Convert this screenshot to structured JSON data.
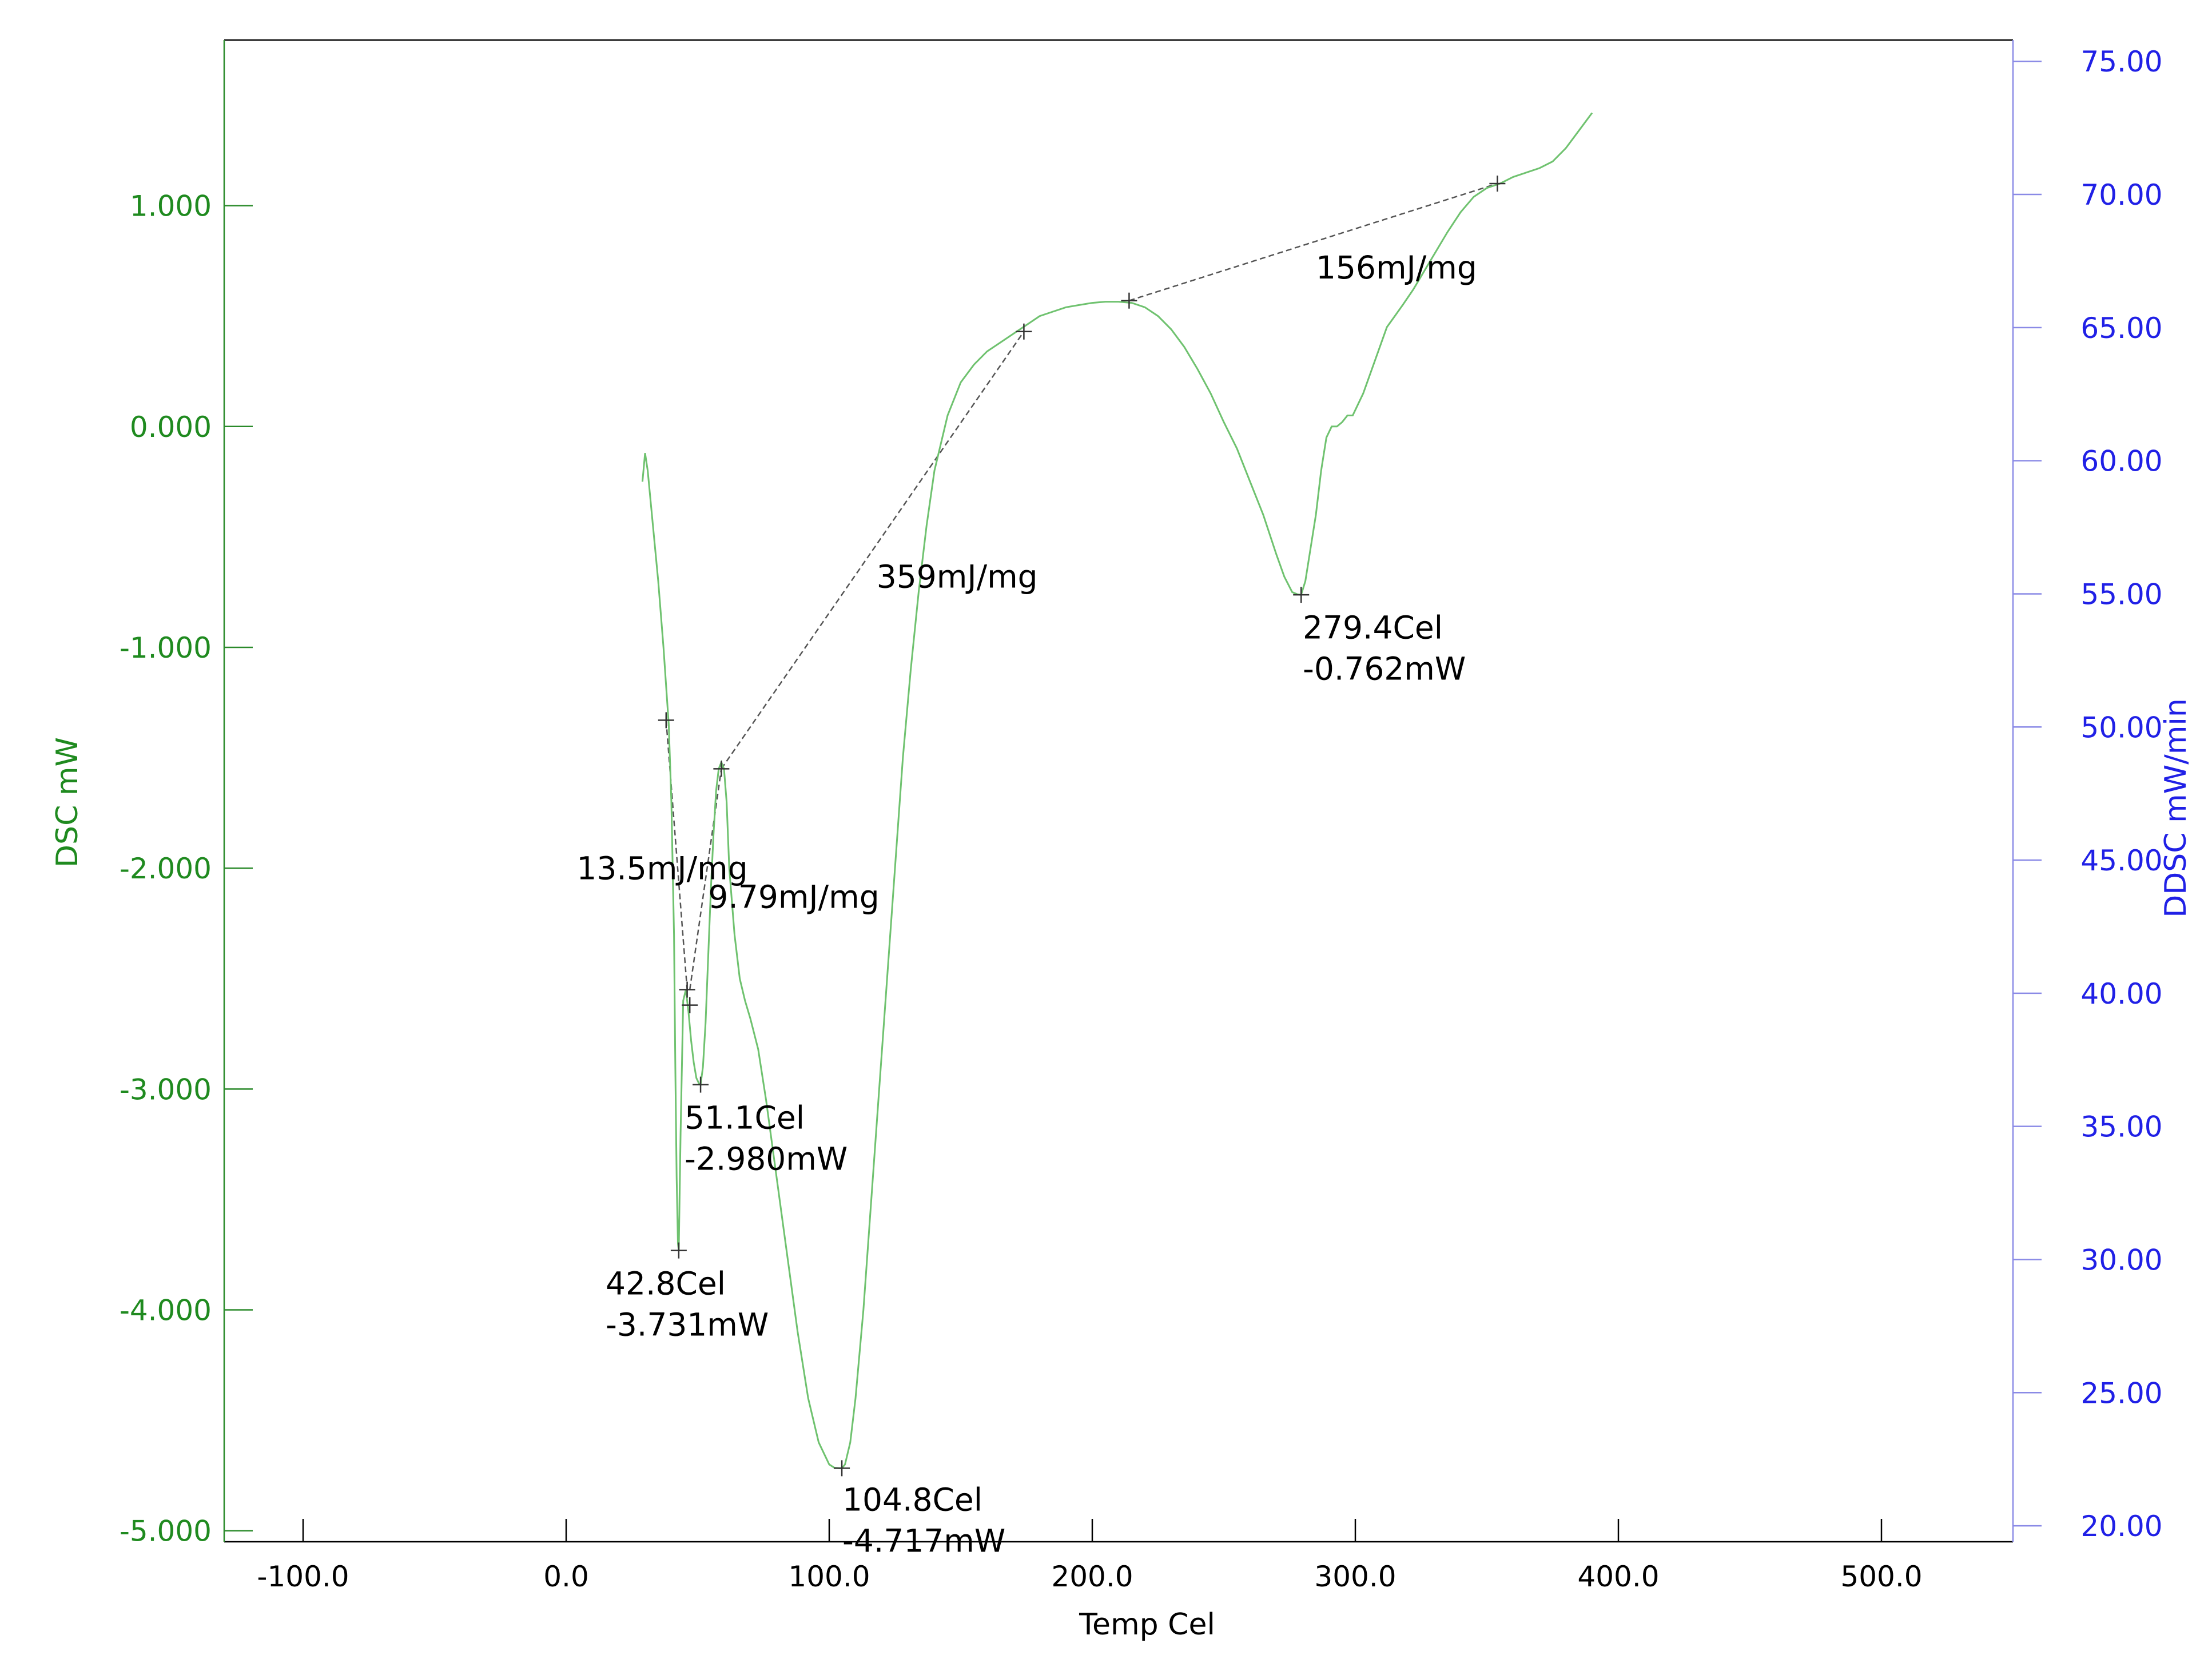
{
  "chart_data": {
    "type": "line",
    "title": "",
    "xlabel": "Temp Cel",
    "ylabel": "DSC mW",
    "y2label": "DDSC mW/min",
    "xlim": [
      -130,
      550
    ],
    "ylim": [
      -5.05,
      1.75
    ],
    "y2lim": [
      19.4,
      75.8
    ],
    "grid": false,
    "legend": "none",
    "colors": {
      "dsc_curve": "#6fc26f",
      "left_axis": "#2a8a2a",
      "left_tick_text": "#1f8a1f",
      "right_axis": "#8a8ae6",
      "right_tick_text": "#2020e6",
      "baseline": "#555555",
      "frame": "#000000"
    },
    "x_ticks": [
      {
        "value": -100,
        "label": "-100.0"
      },
      {
        "value": 0,
        "label": "0.0"
      },
      {
        "value": 100,
        "label": "100.0"
      },
      {
        "value": 200,
        "label": "200.0"
      },
      {
        "value": 300,
        "label": "300.0"
      },
      {
        "value": 400,
        "label": "400.0"
      },
      {
        "value": 500,
        "label": "500.0"
      }
    ],
    "y_ticks": [
      {
        "value": 1,
        "label": "1.000"
      },
      {
        "value": 0,
        "label": "0.000"
      },
      {
        "value": -1,
        "label": "-1.000"
      },
      {
        "value": -2,
        "label": "-2.000"
      },
      {
        "value": -3,
        "label": "-3.000"
      },
      {
        "value": -4,
        "label": "-4.000"
      },
      {
        "value": -5,
        "label": "-5.000"
      }
    ],
    "y2_ticks": [
      {
        "value": 75,
        "label": "75.00"
      },
      {
        "value": 70,
        "label": "70.00"
      },
      {
        "value": 65,
        "label": "65.00"
      },
      {
        "value": 60,
        "label": "60.00"
      },
      {
        "value": 55,
        "label": "55.00"
      },
      {
        "value": 50,
        "label": "50.00"
      },
      {
        "value": 45,
        "label": "45.00"
      },
      {
        "value": 40,
        "label": "40.00"
      },
      {
        "value": 35,
        "label": "35.00"
      },
      {
        "value": 30,
        "label": "30.00"
      },
      {
        "value": 25,
        "label": "25.00"
      },
      {
        "value": 20,
        "label": "20.00"
      }
    ],
    "series": [
      {
        "axis": "left",
        "x": [
          29,
          30,
          31,
          33,
          35,
          37,
          39,
          40,
          41,
          41.5,
          42,
          42.5,
          42.8,
          43.5,
          44.5,
          45.5,
          46.5,
          47.5,
          48.5,
          49.5,
          50.5,
          51.1,
          52,
          53,
          54,
          55,
          56,
          57,
          58,
          59,
          60,
          61,
          62,
          64,
          66,
          68,
          70,
          73,
          76,
          80,
          84,
          88,
          92,
          96,
          100,
          102,
          104,
          104.8,
          106,
          108,
          110,
          113,
          116,
          119,
          122,
          125,
          128,
          131,
          134,
          137,
          140,
          145,
          150,
          155,
          160,
          165,
          170,
          175,
          180,
          185,
          190,
          195,
          200,
          205,
          210,
          215,
          220,
          225,
          230,
          235,
          240,
          245,
          250,
          255,
          260,
          265,
          270,
          273,
          276,
          278,
          279.4,
          281,
          283,
          285,
          287,
          289,
          291,
          293,
          295,
          297,
          299,
          301,
          303,
          306,
          309,
          312,
          315,
          318,
          322,
          326,
          330,
          335,
          340,
          345,
          350,
          355,
          360,
          365,
          370,
          375,
          380,
          385,
          390
        ],
        "y": [
          -0.25,
          -0.12,
          -0.2,
          -0.45,
          -0.7,
          -1.0,
          -1.35,
          -1.7,
          -2.3,
          -2.9,
          -3.4,
          -3.7,
          -3.731,
          -3.2,
          -2.6,
          -2.55,
          -2.65,
          -2.78,
          -2.88,
          -2.95,
          -2.975,
          -2.98,
          -2.9,
          -2.7,
          -2.4,
          -2.1,
          -1.85,
          -1.65,
          -1.55,
          -1.52,
          -1.55,
          -1.7,
          -2.0,
          -2.3,
          -2.5,
          -2.6,
          -2.68,
          -2.82,
          -3.05,
          -3.4,
          -3.75,
          -4.1,
          -4.4,
          -4.6,
          -4.7,
          -4.715,
          -4.717,
          -4.717,
          -4.7,
          -4.6,
          -4.4,
          -4.0,
          -3.5,
          -3.0,
          -2.5,
          -2.0,
          -1.5,
          -1.1,
          -0.75,
          -0.45,
          -0.2,
          0.05,
          0.2,
          0.28,
          0.34,
          0.38,
          0.42,
          0.46,
          0.5,
          0.52,
          0.54,
          0.55,
          0.56,
          0.565,
          0.565,
          0.56,
          0.54,
          0.5,
          0.44,
          0.36,
          0.26,
          0.15,
          0.02,
          -0.1,
          -0.25,
          -0.4,
          -0.58,
          -0.68,
          -0.75,
          -0.76,
          -0.762,
          -0.7,
          -0.55,
          -0.4,
          -0.2,
          -0.05,
          0.0,
          0.0,
          0.02,
          0.05,
          0.05,
          0.1,
          0.15,
          0.25,
          0.35,
          0.45,
          0.5,
          0.55,
          0.62,
          0.7,
          0.78,
          0.88,
          0.97,
          1.04,
          1.08,
          1.1,
          1.13,
          1.15,
          1.17,
          1.2,
          1.26,
          1.34,
          1.42
        ]
      }
    ],
    "baselines": [
      {
        "points": [
          [
            38,
            -1.33
          ],
          [
            46,
            -2.55
          ]
        ]
      },
      {
        "points": [
          [
            47,
            -2.55
          ],
          [
            59,
            -1.55
          ]
        ]
      },
      {
        "points": [
          [
            59,
            -1.55
          ],
          [
            174,
            0.43
          ]
        ]
      },
      {
        "points": [
          [
            214,
            0.57
          ],
          [
            354,
            1.1
          ]
        ]
      }
    ],
    "markers": [
      [
        38,
        -1.33
      ],
      [
        46,
        -2.55
      ],
      [
        47,
        -2.62
      ],
      [
        59,
        -1.55
      ],
      [
        174,
        0.43
      ],
      [
        214,
        0.57
      ],
      [
        354,
        1.1
      ],
      [
        42.8,
        -3.731
      ],
      [
        51.1,
        -2.98
      ],
      [
        104.8,
        -4.717
      ],
      [
        279.4,
        -0.762
      ]
    ],
    "annotations": [
      {
        "lines": [
          "42.8Cel",
          "-3.731mW"
        ],
        "x": 15,
        "y": -3.8
      },
      {
        "lines": [
          "51.1Cel",
          "-2.980mW"
        ],
        "x": 45,
        "y": -3.05
      },
      {
        "lines": [
          "104.8Cel",
          "-4.717mW"
        ],
        "x": 105,
        "y": -4.78
      },
      {
        "lines": [
          "279.4Cel",
          "-0.762mW"
        ],
        "x": 280,
        "y": -0.83
      },
      {
        "lines": [
          "13.5mJ/mg"
        ],
        "x": 4,
        "y": -1.92
      },
      {
        "lines": [
          "9.79mJ/mg"
        ],
        "x": 54,
        "y": -2.05
      },
      {
        "lines": [
          "359mJ/mg"
        ],
        "x": 118,
        "y": -0.6
      },
      {
        "lines": [
          "156mJ/mg"
        ],
        "x": 285,
        "y": 0.8
      }
    ]
  }
}
